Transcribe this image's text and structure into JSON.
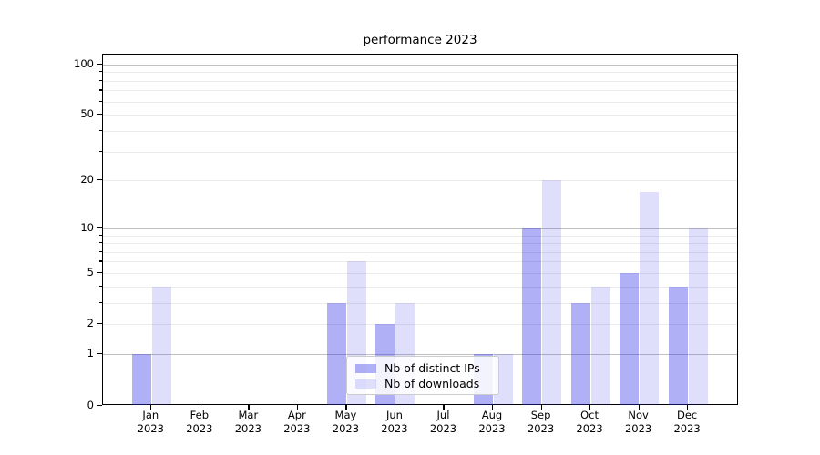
{
  "title": "performance 2023",
  "chart_data": {
    "type": "bar",
    "title": "performance 2023",
    "categories": [
      "Jan",
      "Feb",
      "Mar",
      "Apr",
      "May",
      "Jun",
      "Jul",
      "Aug",
      "Sep",
      "Oct",
      "Nov",
      "Dec"
    ],
    "category_year": "2023",
    "series": [
      {
        "name": "Nb of distinct IPs",
        "color_hex": "#a8a8f5",
        "color_rgba": "rgba(40,40,230,0.37)",
        "values": [
          1,
          0,
          0,
          0,
          3,
          2,
          0,
          1,
          10,
          3,
          5,
          4
        ]
      },
      {
        "name": "Nb of downloads",
        "color_hex": "#dcdcf7",
        "color_rgba": "rgba(55,55,235,0.16)",
        "values": [
          4,
          0,
          0,
          0,
          6,
          3,
          0,
          1,
          20,
          4,
          17,
          10
        ]
      }
    ],
    "xlabel": "",
    "ylabel": "",
    "scale": "log1p",
    "y_axis": {
      "tick_values": [
        0,
        1,
        2,
        5,
        10,
        20,
        50,
        100
      ],
      "tick_labels": [
        "0",
        "1",
        "2",
        "5",
        "10",
        "20",
        "50",
        "100"
      ],
      "major_grid_values": [
        1,
        10,
        100
      ],
      "minor_grid_values": [
        2,
        3,
        4,
        5,
        6,
        7,
        8,
        9,
        20,
        30,
        40,
        50,
        60,
        70,
        80,
        90
      ],
      "minor_tick_values": [
        3,
        4,
        6,
        7,
        8,
        9,
        30,
        40,
        60,
        70,
        80,
        90
      ],
      "ylim": [
        0,
        113
      ]
    },
    "grid": true,
    "legend_position": "lower center",
    "colors": {
      "major_grid": "#c0c0c0",
      "minor_grid": "#ebebeb",
      "axis": "#000000",
      "legend_border": "#cccccc",
      "background": "#ffffff"
    }
  }
}
